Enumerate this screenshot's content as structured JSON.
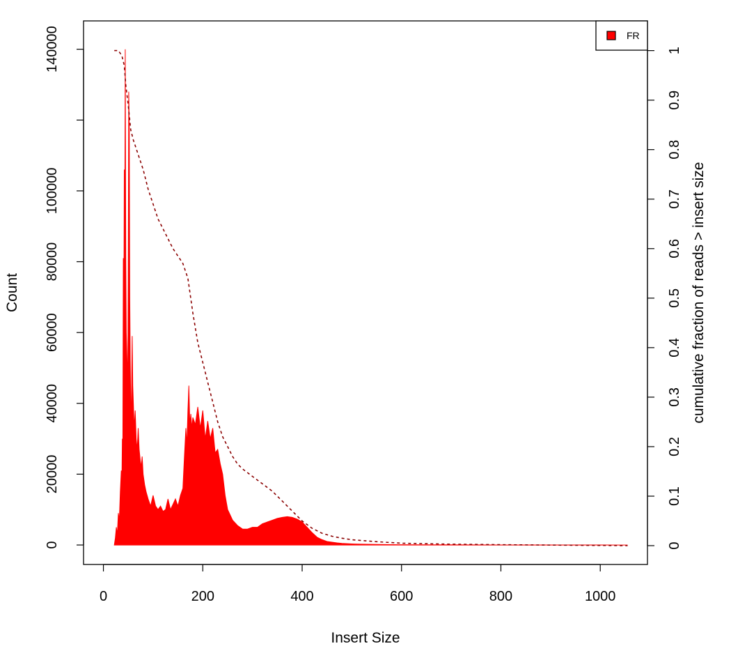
{
  "chart_data": {
    "type": "area",
    "title": "",
    "xlabel": "Insert Size",
    "ylabel": "Count",
    "y2label": "cumulative fraction of reads > insert size",
    "xlim": [
      -40,
      1095
    ],
    "ylim": [
      -5500,
      148000
    ],
    "y2lim": [
      -0.038,
      1.06
    ],
    "x_ticks": [
      0,
      200,
      400,
      600,
      800,
      1000
    ],
    "y_ticks": [
      0,
      20000,
      40000,
      60000,
      80000,
      100000,
      120000,
      140000
    ],
    "y_tick_labels_shown": [
      0,
      20000,
      40000,
      60000,
      80000,
      100000,
      140000
    ],
    "y2_ticks": [
      0,
      0.1,
      0.2,
      0.3,
      0.4,
      0.5,
      0.6,
      0.7,
      0.8,
      0.9,
      1
    ],
    "legend": {
      "position": "top-right",
      "entries": [
        "FR"
      ]
    },
    "colors": {
      "histogram": "#ff0000",
      "cumulative": "#8b0000",
      "legend_swatch": "#ff0000"
    },
    "series": [
      {
        "name": "FR",
        "kind": "histogram",
        "x": [
          22,
          24,
          26,
          28,
          30,
          32,
          34,
          36,
          37,
          38,
          39,
          40,
          41,
          42,
          43,
          44,
          45,
          46,
          47,
          48,
          49,
          50,
          51,
          52,
          53,
          54,
          55,
          56,
          57,
          58,
          59,
          60,
          62,
          64,
          66,
          68,
          70,
          72,
          74,
          76,
          78,
          80,
          83,
          86,
          90,
          95,
          100,
          105,
          110,
          115,
          120,
          125,
          130,
          135,
          140,
          145,
          150,
          155,
          160,
          163,
          166,
          168,
          170,
          172,
          174,
          176,
          178,
          180,
          185,
          190,
          195,
          200,
          205,
          210,
          215,
          220,
          225,
          230,
          235,
          240,
          245,
          250,
          260,
          270,
          280,
          290,
          300,
          310,
          320,
          330,
          340,
          350,
          360,
          370,
          380,
          390,
          400,
          410,
          420,
          430,
          440,
          450,
          460,
          470,
          480,
          500,
          520,
          550,
          600,
          650,
          700,
          800,
          900,
          1000,
          1055
        ],
        "values": [
          0,
          2000,
          5000,
          3000,
          9000,
          7000,
          15000,
          21000,
          16000,
          30000,
          25000,
          81000,
          60000,
          106000,
          91000,
          140000,
          80000,
          60000,
          55000,
          50000,
          48000,
          75000,
          128000,
          118000,
          70000,
          52000,
          40000,
          35000,
          48000,
          59000,
          45000,
          41000,
          33000,
          38000,
          30000,
          27000,
          33000,
          27000,
          24000,
          22000,
          25000,
          20000,
          17000,
          15000,
          13000,
          11000,
          14000,
          11000,
          10000,
          11000,
          9500,
          10000,
          13000,
          10000,
          11500,
          13000,
          11000,
          14000,
          16000,
          25000,
          33000,
          28000,
          38000,
          45000,
          34000,
          37000,
          33000,
          36000,
          34000,
          39000,
          33000,
          38000,
          30000,
          35000,
          30000,
          33000,
          26000,
          27000,
          23000,
          20000,
          14000,
          10000,
          7000,
          5500,
          4500,
          4500,
          5000,
          5000,
          6000,
          6500,
          7000,
          7500,
          7800,
          8000,
          7800,
          7300,
          6500,
          5000,
          3500,
          2200,
          1500,
          1000,
          800,
          600,
          450,
          300,
          220,
          150,
          90,
          60,
          40,
          20,
          10,
          5,
          0
        ]
      },
      {
        "name": "cumulative",
        "kind": "line",
        "style": "dashed",
        "axis": "right",
        "x": [
          22,
          30,
          37,
          42,
          45,
          50,
          55,
          60,
          70,
          80,
          90,
          100,
          110,
          120,
          130,
          140,
          150,
          160,
          170,
          180,
          190,
          200,
          210,
          220,
          230,
          240,
          250,
          260,
          270,
          280,
          300,
          320,
          340,
          360,
          380,
          400,
          420,
          440,
          460,
          480,
          500,
          550,
          600,
          700,
          800,
          1000,
          1055
        ],
        "values": [
          1.0,
          1.0,
          0.99,
          0.97,
          0.93,
          0.89,
          0.84,
          0.82,
          0.79,
          0.76,
          0.72,
          0.69,
          0.66,
          0.64,
          0.62,
          0.6,
          0.585,
          0.57,
          0.54,
          0.47,
          0.41,
          0.37,
          0.33,
          0.29,
          0.25,
          0.22,
          0.2,
          0.18,
          0.165,
          0.155,
          0.14,
          0.125,
          0.11,
          0.09,
          0.07,
          0.05,
          0.035,
          0.025,
          0.019,
          0.015,
          0.012,
          0.008,
          0.005,
          0.003,
          0.002,
          0.0005,
          0.0
        ]
      }
    ]
  }
}
